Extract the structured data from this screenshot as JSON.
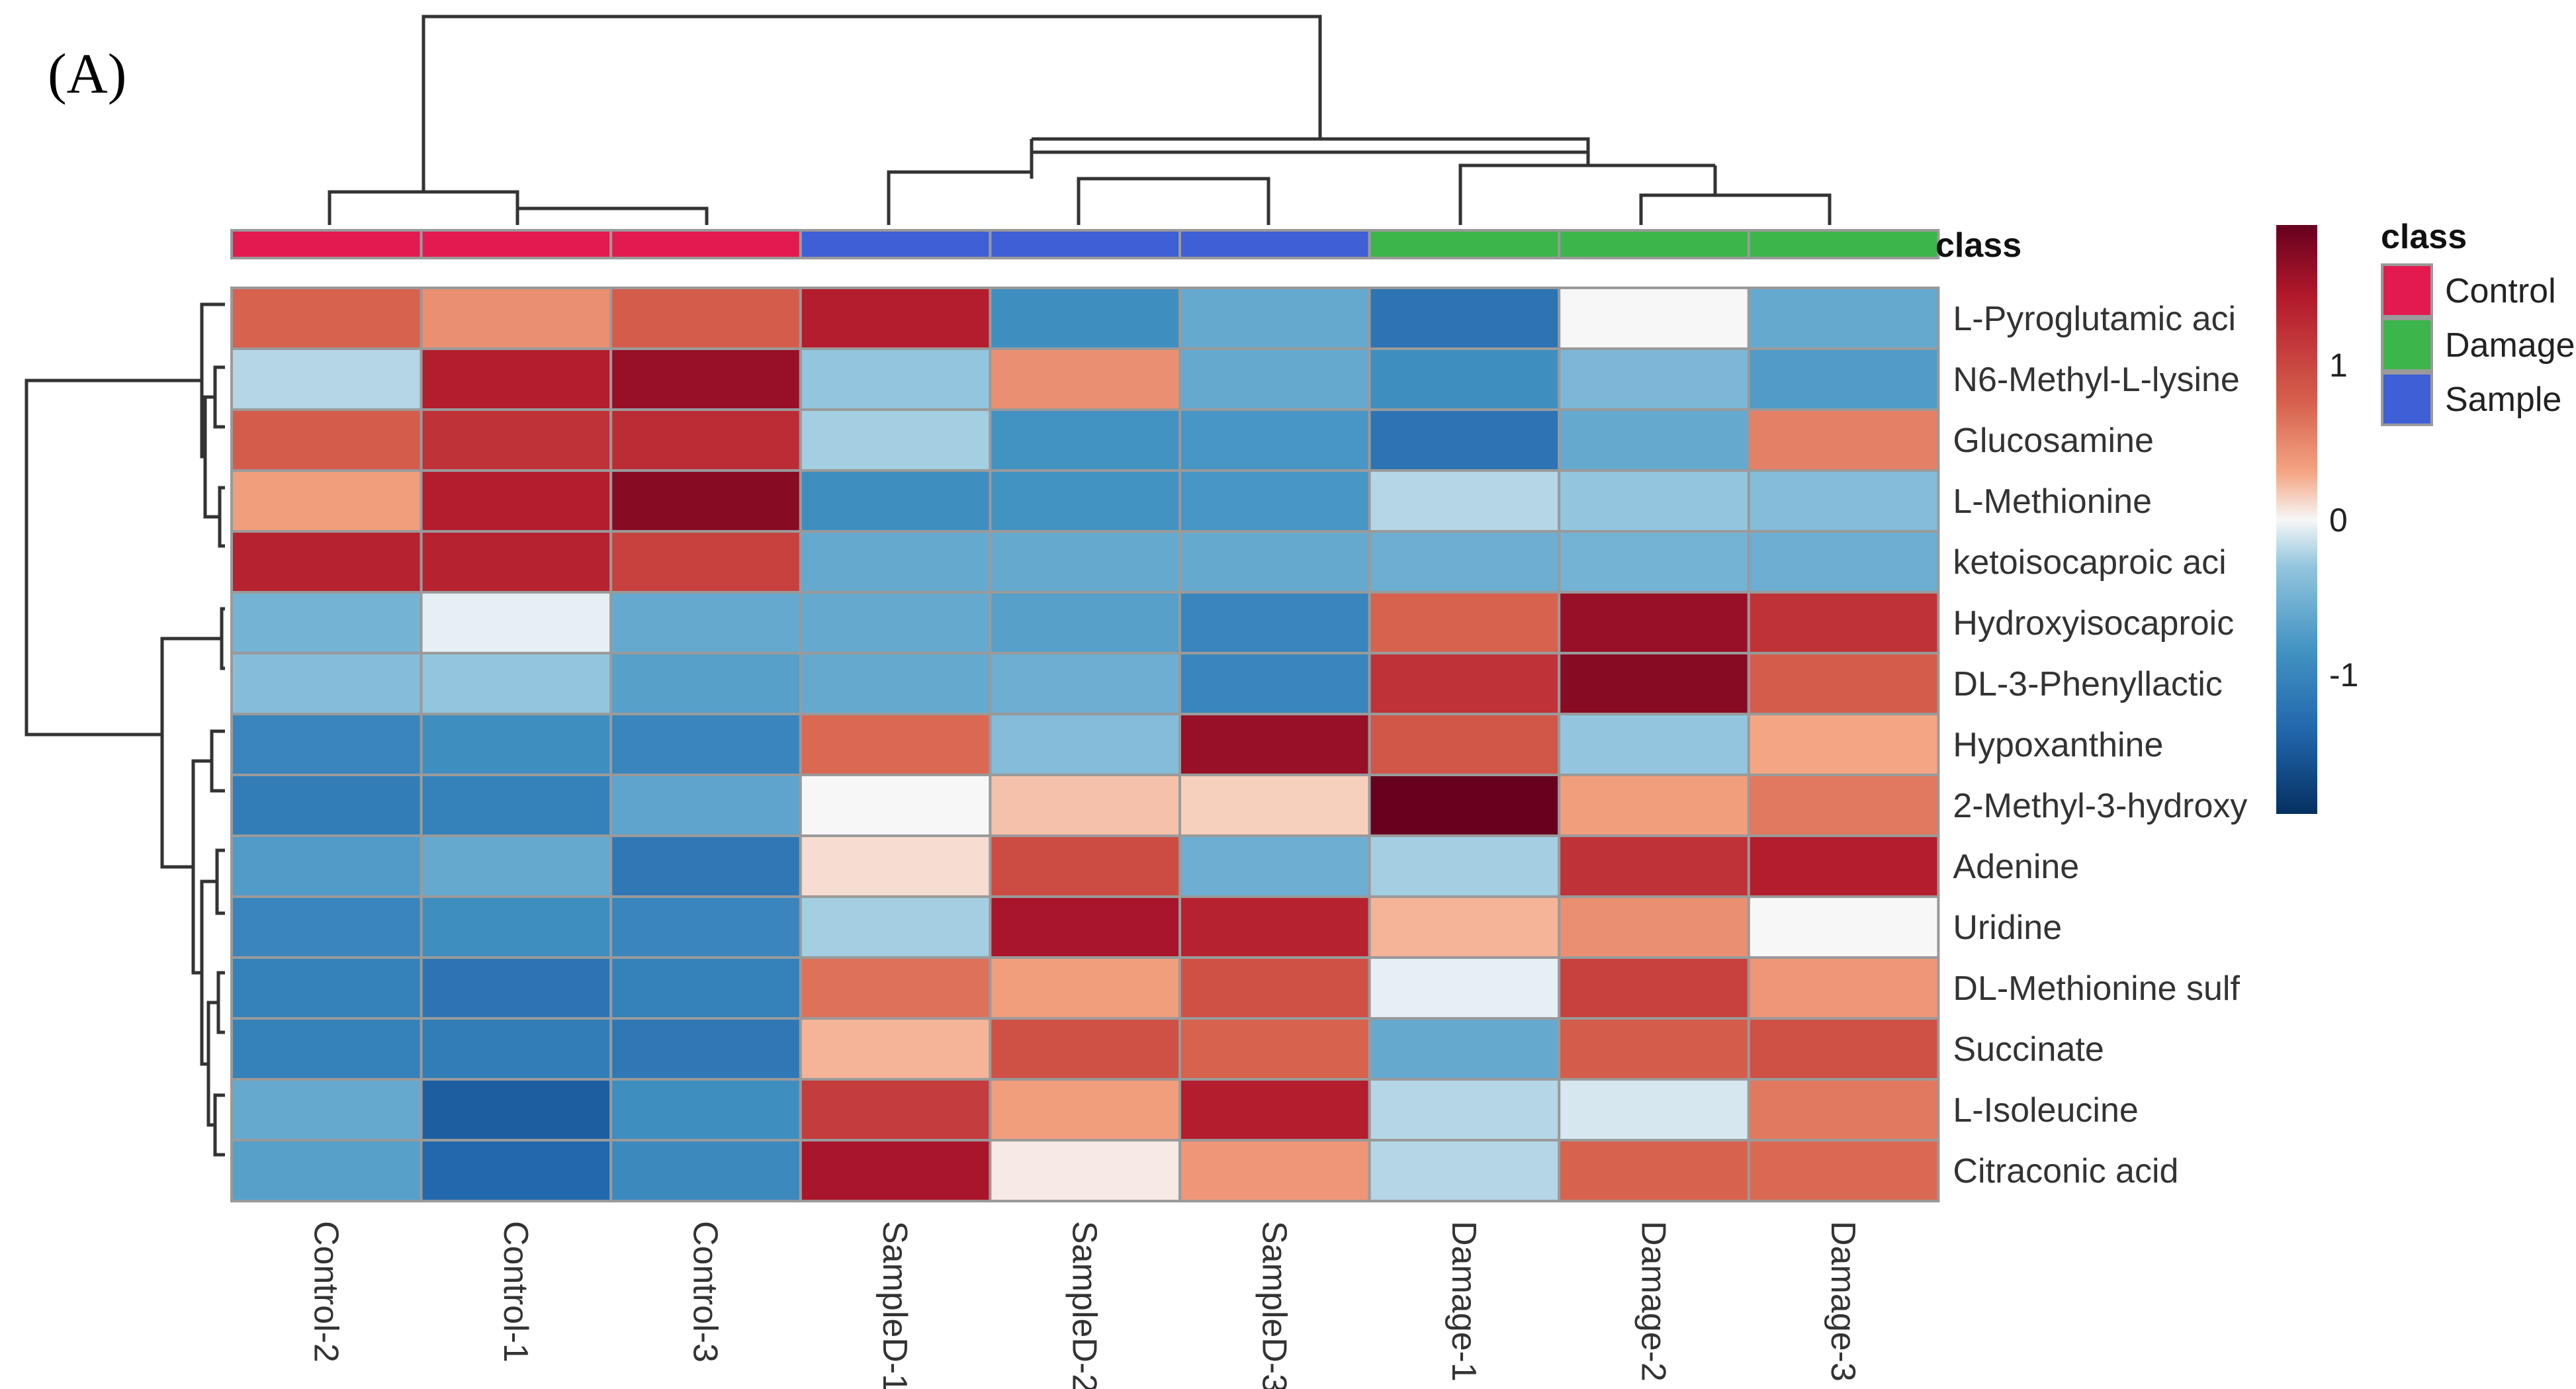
{
  "panel_label": "(A)",
  "chart_data": {
    "type": "heatmap",
    "columns": [
      "Control-2",
      "Control-1",
      "Control-3",
      "SampleD-1",
      "SampleD-2",
      "SampleD-3",
      "Damage-1",
      "Damage-2",
      "Damage-3"
    ],
    "column_classes": [
      "Control",
      "Control",
      "Control",
      "Sample",
      "Sample",
      "Sample",
      "Damage",
      "Damage",
      "Damage"
    ],
    "rows": [
      "L-Pyroglutamic aci",
      "N6-Methyl-L-lysine",
      "Glucosamine",
      "L-Methionine",
      "ketoisocaproic aci",
      "Hydroxyisocaproic",
      "DL-3-Phenyllactic",
      "Hypoxanthine",
      "2-Methyl-3-hydroxy",
      "Adenine",
      "Uridine",
      "DL-Methionine sulf",
      "Succinate",
      "L-Isoleucine",
      "Citraconic acid"
    ],
    "values": [
      [
        0.75,
        0.45,
        0.8,
        1.4,
        -0.9,
        -0.6,
        -1.2,
        0.0,
        -0.6
      ],
      [
        -0.2,
        1.4,
        1.6,
        -0.3,
        0.45,
        -0.6,
        -0.9,
        -0.45,
        -0.75
      ],
      [
        0.8,
        1.2,
        1.25,
        -0.25,
        -0.85,
        -0.8,
        -1.2,
        -0.6,
        0.55
      ],
      [
        0.35,
        1.4,
        1.7,
        -0.9,
        -0.85,
        -0.8,
        -0.2,
        -0.3,
        -0.4
      ],
      [
        1.35,
        1.35,
        1.05,
        -0.6,
        -0.6,
        -0.6,
        -0.55,
        -0.5,
        -0.55
      ],
      [
        -0.5,
        -0.05,
        -0.6,
        -0.6,
        -0.7,
        -1.0,
        0.75,
        1.6,
        1.2
      ],
      [
        -0.4,
        -0.3,
        -0.7,
        -0.6,
        -0.55,
        -1.0,
        1.2,
        1.7,
        0.8
      ],
      [
        -1.0,
        -0.9,
        -1.0,
        0.7,
        -0.4,
        1.6,
        0.85,
        -0.3,
        0.3
      ],
      [
        -1.1,
        -1.05,
        -0.65,
        0.0,
        0.2,
        0.15,
        1.9,
        0.35,
        0.6
      ],
      [
        -0.75,
        -0.6,
        -1.15,
        0.1,
        0.95,
        -0.55,
        -0.25,
        1.2,
        1.4
      ],
      [
        -1.0,
        -0.9,
        -1.0,
        -0.25,
        1.5,
        1.35,
        0.25,
        0.45,
        0.0
      ],
      [
        -1.05,
        -1.2,
        -1.05,
        0.65,
        0.35,
        0.9,
        -0.05,
        1.05,
        0.4
      ],
      [
        -1.05,
        -1.1,
        -1.15,
        0.25,
        0.9,
        0.75,
        -0.6,
        0.8,
        0.9
      ],
      [
        -0.6,
        -1.45,
        -0.9,
        1.1,
        0.35,
        1.4,
        -0.2,
        -0.1,
        0.6
      ],
      [
        -0.7,
        -1.35,
        -0.95,
        1.5,
        0.05,
        0.4,
        -0.2,
        0.75,
        0.7
      ]
    ],
    "color_scale": {
      "min": -1.9,
      "max": 1.9,
      "ticks": [
        1,
        0,
        -1
      ],
      "low_color": "#053061",
      "mid_color": "#f7f7f7",
      "high_color": "#67001f"
    },
    "class_legend": {
      "title": "class",
      "entries": [
        {
          "label": "Control",
          "color": "#e31a4f"
        },
        {
          "label": "Damage",
          "color": "#3cb54a"
        },
        {
          "label": "Sample",
          "color": "#3f5fd6"
        }
      ]
    },
    "class_bar_label": "class",
    "grid": true,
    "legend_position": "right"
  }
}
